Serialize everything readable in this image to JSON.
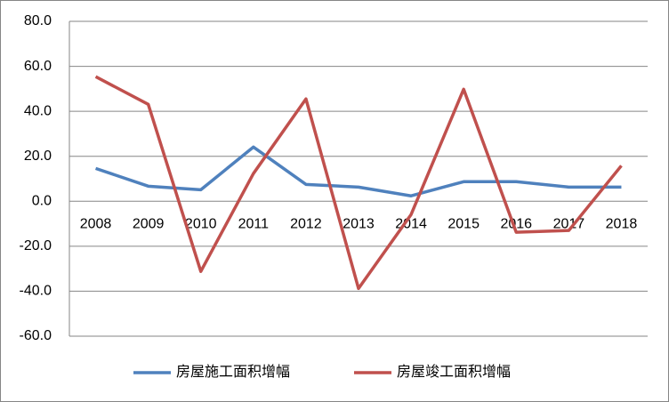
{
  "chart_data": {
    "type": "line",
    "categories": [
      "2008",
      "2009",
      "2010",
      "2011",
      "2012",
      "2013",
      "2014",
      "2015",
      "2016",
      "2017",
      "2018"
    ],
    "series": [
      {
        "name": "房屋施工面积增幅",
        "color": "#4f81bd",
        "values": [
          14.6,
          6.7,
          5.1,
          24.1,
          7.5,
          6.3,
          2.4,
          8.7,
          8.7,
          6.3,
          6.3
        ]
      },
      {
        "name": "房屋竣工面积增幅",
        "color": "#c0504d",
        "values": [
          55.4,
          43.1,
          -31.2,
          12.3,
          45.5,
          -38.8,
          -5.9,
          49.8,
          -13.8,
          -13.0,
          15.8
        ]
      }
    ],
    "ylim": [
      -60,
      80
    ],
    "yticks": [
      {
        "value": -60,
        "label": "-60.0"
      },
      {
        "value": -40,
        "label": "-40.0"
      },
      {
        "value": -20,
        "label": "-20.0"
      },
      {
        "value": 0,
        "label": "0.0"
      },
      {
        "value": 20,
        "label": "20.0"
      },
      {
        "value": 40,
        "label": "40.0"
      },
      {
        "value": 60,
        "label": "60.0"
      },
      {
        "value": 80,
        "label": "80.0"
      }
    ],
    "grid": true,
    "legend": "bottom"
  }
}
